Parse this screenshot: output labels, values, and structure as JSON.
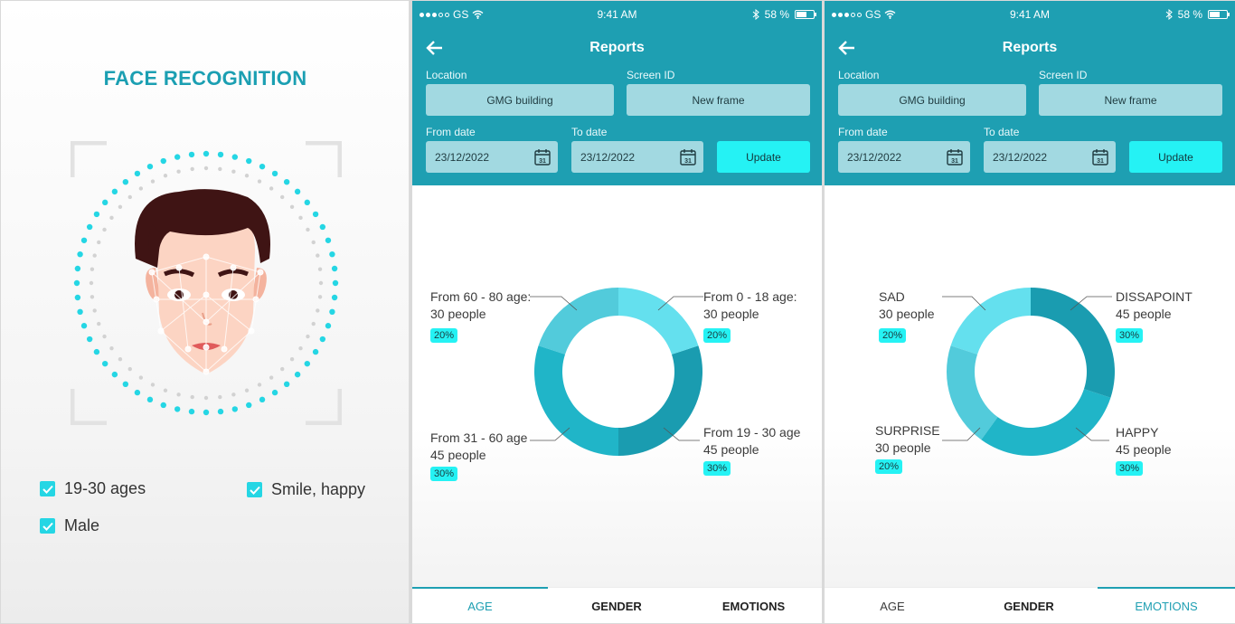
{
  "face_panel": {
    "title": "FACE RECOGNITION",
    "checks": [
      {
        "label": "19-30 ages",
        "checked": true
      },
      {
        "label": "Smile, happy",
        "checked": true
      },
      {
        "label": "Male",
        "checked": true
      }
    ],
    "accent_color": "#25d6e4"
  },
  "status_bar": {
    "carrier": "GS",
    "time": "9:41 AM",
    "battery": "58 %"
  },
  "reports": {
    "title": "Reports",
    "location_label": "Location",
    "location_value": "GMG building",
    "screen_label": "Screen ID",
    "screen_value": "New frame",
    "from_label": "From date",
    "from_value": "23/12/2022",
    "to_label": "To date",
    "to_value": "23/12/2022",
    "update_label": "Update",
    "calendar_day": "31",
    "header_color": "#1e9fb2",
    "button_color": "#25f2f4"
  },
  "tabs": {
    "age": "AGE",
    "gender": "GENDER",
    "emotions": "EMOTIONS"
  },
  "chart_data": [
    {
      "type": "pie",
      "donut": true,
      "screen": "AGE",
      "slices": [
        {
          "label": "From 0 - 18 age:",
          "people": "30 people",
          "pct": "20%",
          "value": 20,
          "color": "#64e0ee"
        },
        {
          "label": "From 19 - 30 age",
          "people": "45 people",
          "pct": "30%",
          "value": 30,
          "color": "#1a9cb0"
        },
        {
          "label": "From 31 - 60 age",
          "people": "45 people",
          "pct": "30%",
          "value": 30,
          "color": "#20b5c8"
        },
        {
          "label": "From 60 - 80 age:",
          "people": "30 people",
          "pct": "20%",
          "value": 20,
          "color": "#52cbdb"
        }
      ]
    },
    {
      "type": "pie",
      "donut": true,
      "screen": "EMOTIONS",
      "slices": [
        {
          "label": "DISSAPOINT",
          "people": "45 people",
          "pct": "30%",
          "value": 30,
          "color": "#1a9cb0"
        },
        {
          "label": "HAPPY",
          "people": "45 people",
          "pct": "30%",
          "value": 30,
          "color": "#20b5c8"
        },
        {
          "label": "SURPRISE",
          "people": "30 people",
          "pct": "20%",
          "value": 20,
          "color": "#52cbdb"
        },
        {
          "label": "SAD",
          "people": "30 people",
          "pct": "20%",
          "value": 20,
          "color": "#64e0ee"
        }
      ]
    }
  ]
}
